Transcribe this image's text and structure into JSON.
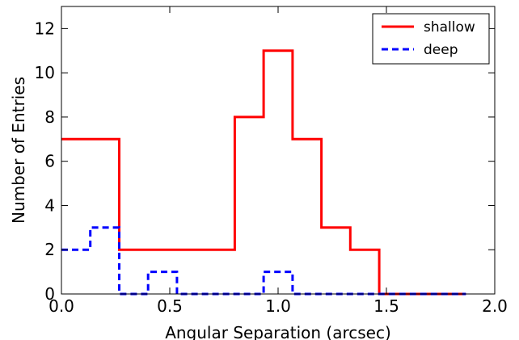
{
  "chart_data": {
    "type": "line",
    "title": "",
    "xlabel": "Angular Separation (arcsec)",
    "ylabel": "Number of Entries",
    "xlim": [
      0.0,
      2.0
    ],
    "ylim": [
      0,
      13
    ],
    "grid": false,
    "legend_position": "top-right",
    "x_ticks": [
      "0.0",
      "0.5",
      "1.0",
      "1.5",
      "2.0"
    ],
    "y_ticks": [
      "0",
      "2",
      "4",
      "6",
      "8",
      "10",
      "12"
    ],
    "bin_edges": [
      0.0,
      0.1333,
      0.2667,
      0.4,
      0.5333,
      0.6667,
      0.8,
      0.9333,
      1.0667,
      1.2,
      1.3333,
      1.4667,
      1.6,
      1.7333,
      1.8667
    ],
    "series": [
      {
        "name": "shallow",
        "color": "#ff0000",
        "style": "solid",
        "values": [
          7,
          7,
          2,
          2,
          2,
          2,
          8,
          11,
          7,
          3,
          2,
          0,
          0,
          0
        ]
      },
      {
        "name": "deep",
        "color": "#0000ff",
        "style": "dashed",
        "values": [
          2,
          3,
          0,
          1,
          0,
          0,
          0,
          1,
          0,
          0,
          0,
          0,
          0,
          0
        ]
      }
    ]
  }
}
